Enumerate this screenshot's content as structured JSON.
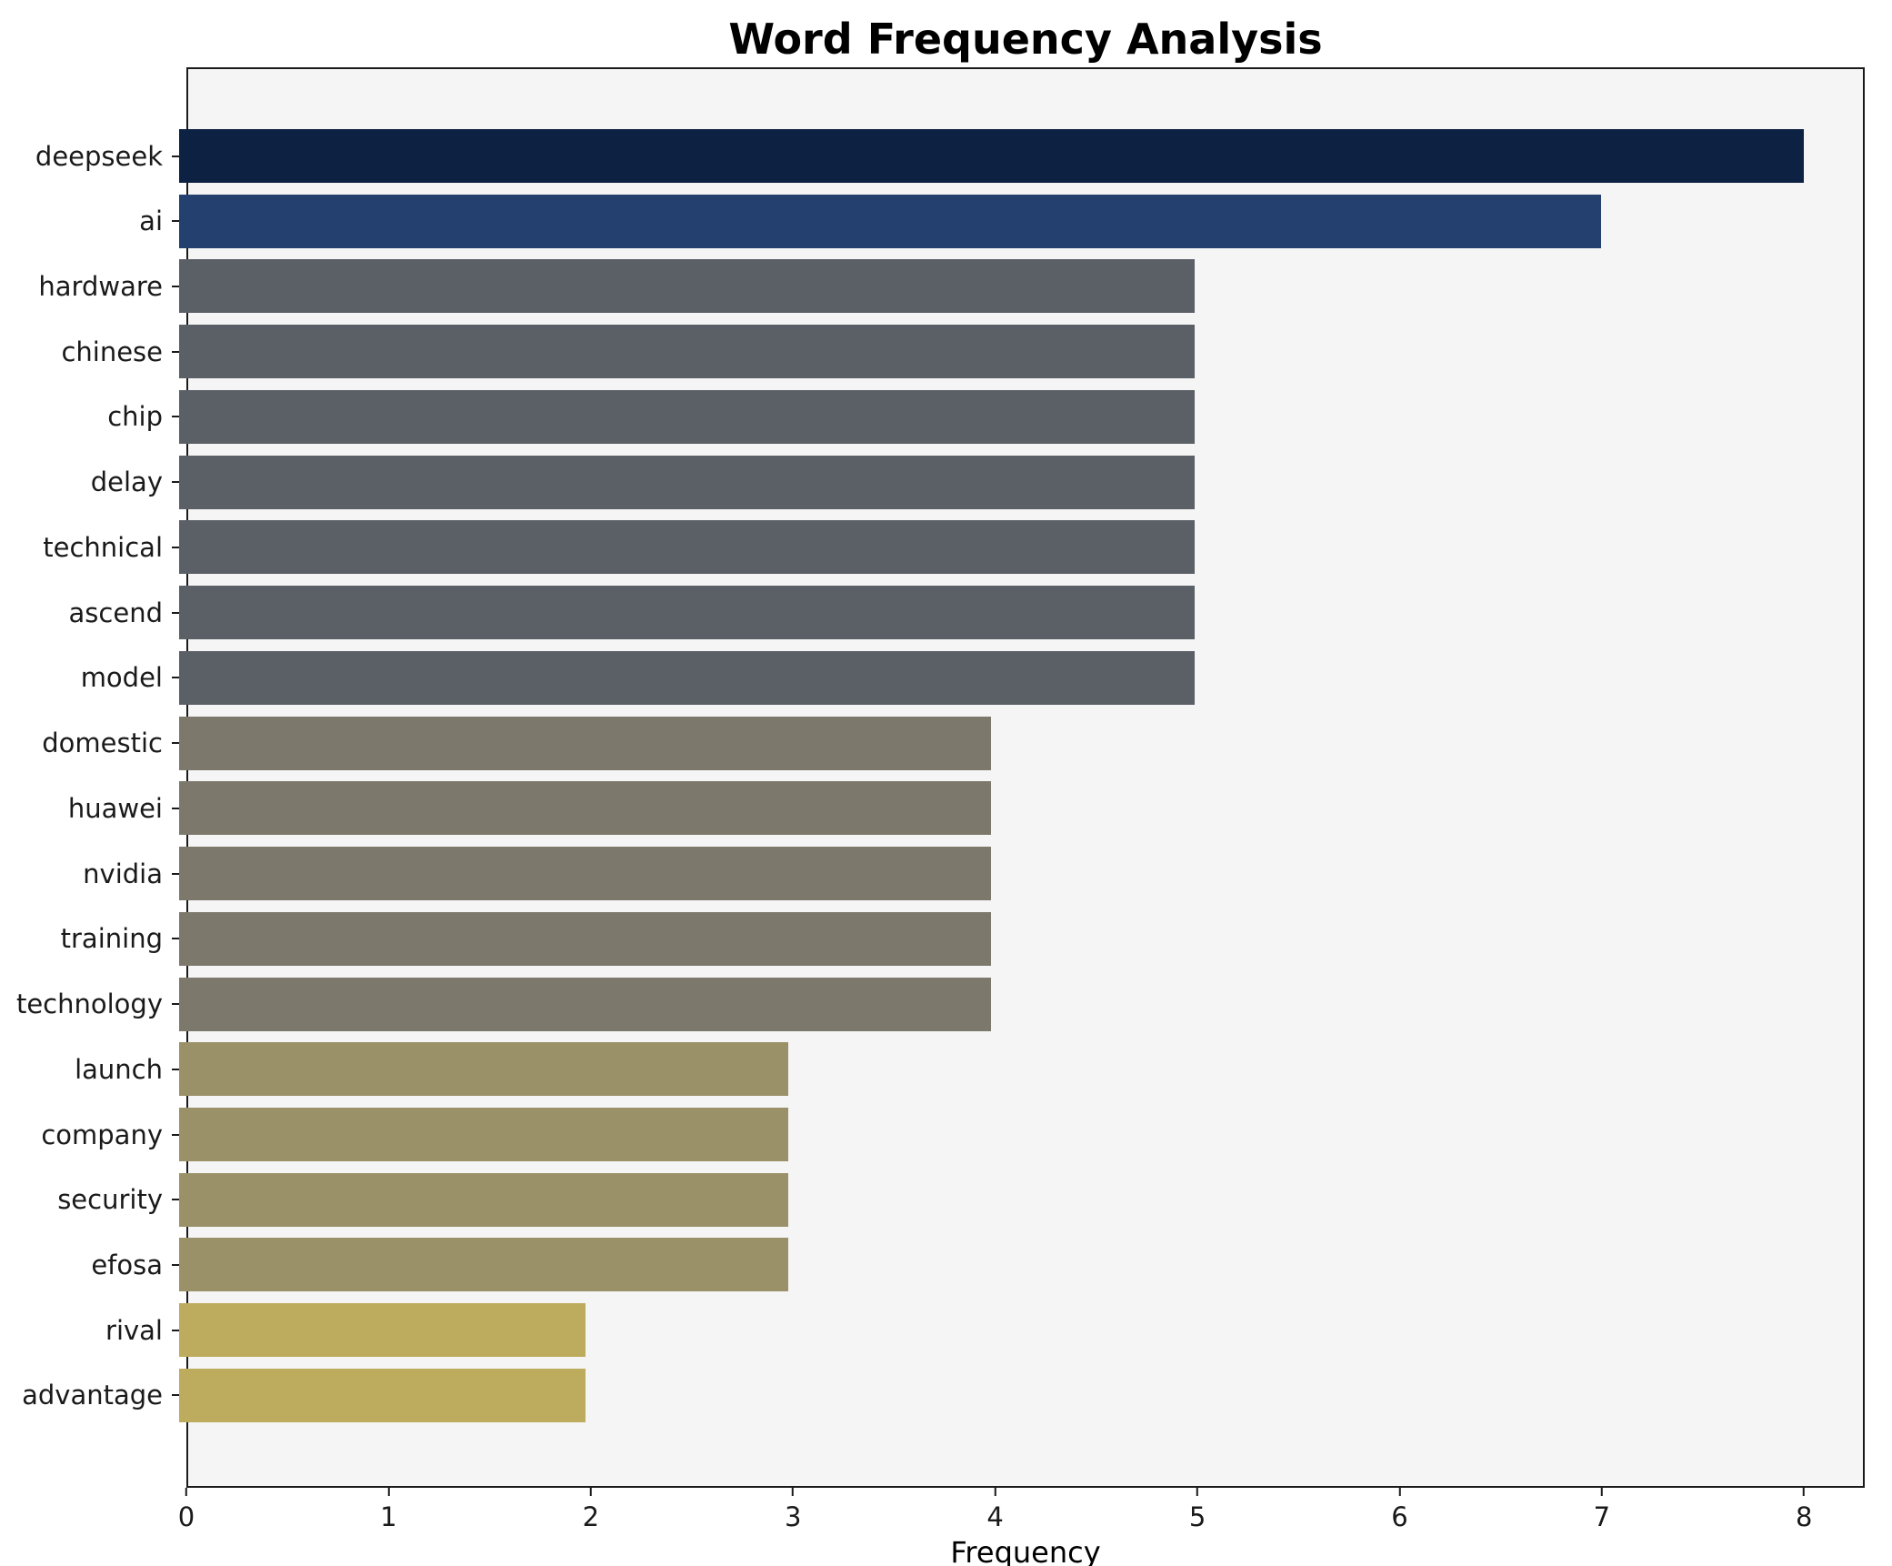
{
  "chart_data": {
    "type": "bar",
    "orientation": "horizontal",
    "title": "Word Frequency Analysis",
    "xlabel": "Frequency",
    "ylabel": "",
    "categories": [
      "deepseek",
      "ai",
      "hardware",
      "chinese",
      "chip",
      "delay",
      "technical",
      "ascend",
      "model",
      "domestic",
      "huawei",
      "nvidia",
      "training",
      "technology",
      "launch",
      "company",
      "security",
      "efosa",
      "rival",
      "advantage"
    ],
    "values": [
      8,
      7,
      5,
      5,
      5,
      5,
      5,
      5,
      5,
      4,
      4,
      4,
      4,
      4,
      3,
      3,
      3,
      3,
      2,
      2
    ],
    "bar_colors": [
      "#0d2143",
      "#23406f",
      "#5b5f66",
      "#5b5f66",
      "#5b5f66",
      "#5b5f66",
      "#5b5f66",
      "#5b5f66",
      "#5b5f66",
      "#7c796c",
      "#7c796c",
      "#7c796c",
      "#7c796c",
      "#7c796c",
      "#9a9168",
      "#9a9168",
      "#9a9168",
      "#9a9168",
      "#beac5e",
      "#beac5e"
    ],
    "xticks": [
      0,
      1,
      2,
      3,
      4,
      5,
      6,
      7,
      8
    ],
    "xlim": [
      0,
      8.3
    ],
    "grid": false,
    "legend": "none",
    "plot_background": "#f5f5f5",
    "figure_background": "#ffffff"
  }
}
